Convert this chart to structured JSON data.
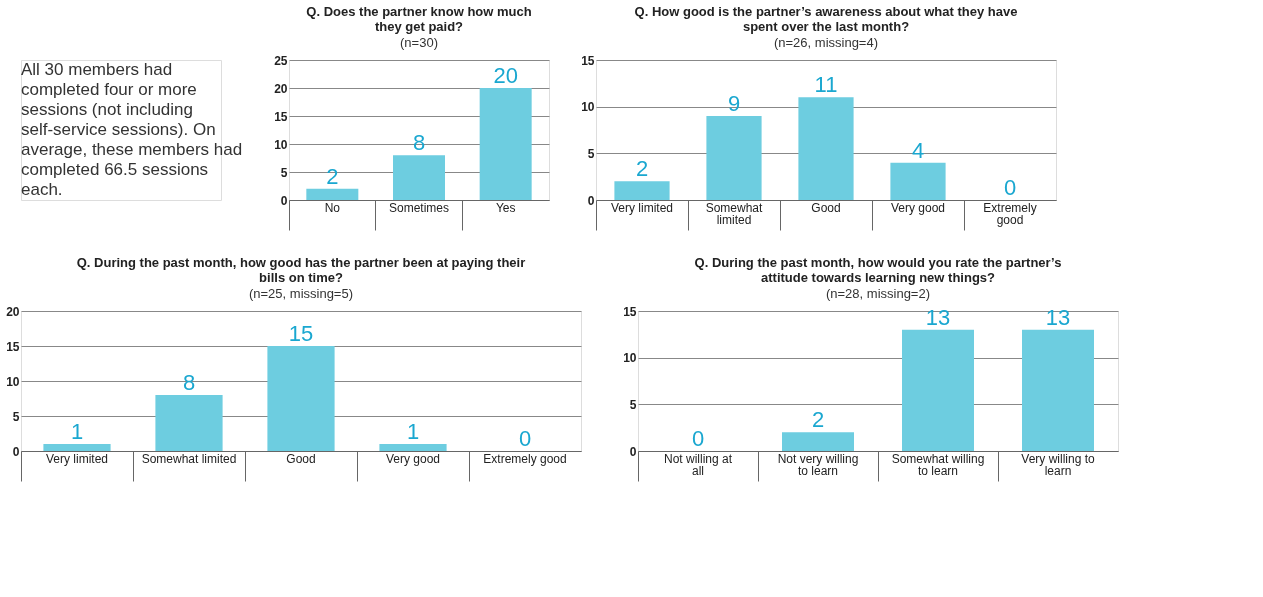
{
  "chart_data": [
    {
      "type": "other",
      "annotations": [
        "All 30 members had completed four or more sessions (not including self-service sessions). On average, these members had completed 66.5 sessions each."
      ]
    },
    {
      "type": "bar",
      "title": "Q. Does the partner know how much they get paid?",
      "subtitle": "(n=30)",
      "categories": [
        "No",
        "Sometimes",
        "Yes"
      ],
      "values": [
        2,
        8,
        20
      ],
      "color": "#6dcde0",
      "ylim": [
        0,
        25
      ],
      "yticks": [
        0,
        5,
        10,
        15,
        20,
        25
      ],
      "grid": "y",
      "data_labels": true
    },
    {
      "type": "bar",
      "title": "Q. How good is the partner’s awareness about what they have spent over the last month?",
      "subtitle": "(n=26, missing=4)",
      "categories": [
        "Very limited",
        "Somewhat limited",
        "Good",
        "Very good",
        "Extremely good"
      ],
      "values": [
        2,
        9,
        11,
        4,
        0
      ],
      "color": "#6dcde0",
      "ylim": [
        0,
        15
      ],
      "yticks": [
        0,
        5,
        10,
        15
      ],
      "grid": "y",
      "data_labels": true
    },
    {
      "type": "bar",
      "title": "Q. During the past month, how good has the partner been at paying their bills on time?",
      "subtitle": "(n=25, missing=5)",
      "categories": [
        "Very limited",
        "Somewhat limited",
        "Good",
        "Very good",
        "Extremely good"
      ],
      "values": [
        1,
        8,
        15,
        1,
        0
      ],
      "color": "#6dcde0",
      "ylim": [
        0,
        20
      ],
      "yticks": [
        0,
        5,
        10,
        15,
        20
      ],
      "grid": "y",
      "data_labels": true
    },
    {
      "type": "bar",
      "title": "Q. During the past month, how would you rate the partner’s attitude towards learning new things?",
      "subtitle": "(n=28, missing=2)",
      "categories": [
        "Not willing at all",
        "Not very willing to learn",
        "Somewhat willing to learn",
        "Very willing to learn"
      ],
      "values": [
        0,
        2,
        13,
        13
      ],
      "color": "#6dcde0",
      "ylim": [
        0,
        15
      ],
      "yticks": [
        0,
        5,
        10,
        15
      ],
      "grid": "y",
      "data_labels": true
    }
  ]
}
